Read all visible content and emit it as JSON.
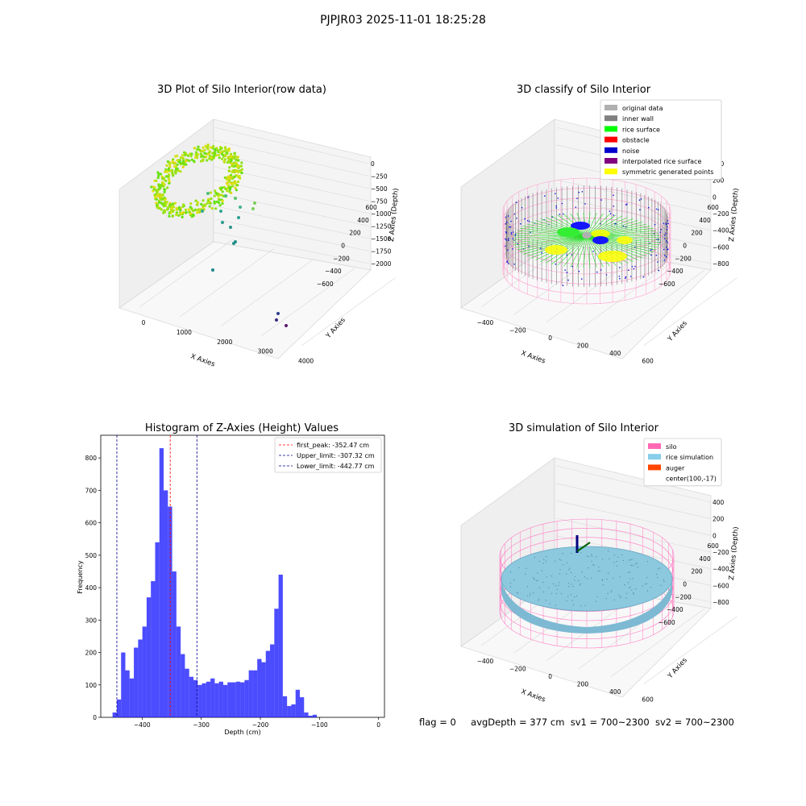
{
  "suptitle": "PJPJR03 2025-11-01 18:25:28",
  "status": {
    "flag": "flag = 0",
    "avg_depth": "avgDepth = 377 cm",
    "sv1": "sv1 = 700~2300",
    "sv2": "sv2 = 700~2300"
  },
  "colors": {
    "hist_bar": "#0000ff",
    "peak_line": "#ff0000",
    "limit_line": "#00008b",
    "silo": "#ff69b4",
    "rice_sim": "#87ceeb",
    "auger": "#ff4500",
    "rice_surface": "#00ff00",
    "noise": "#0000cd",
    "inner_wall": "#808080",
    "original": "#b0b0b0",
    "interpolated": "#800080",
    "symmetric": "#ffff00"
  },
  "panel1": {
    "title": "3D Plot of Silo Interior(row data)",
    "xlabel": "X Axies",
    "ylabel": "Y Axies",
    "zlabel": "Z Axies (Depth)",
    "xticks": [
      "0",
      "1000",
      "2000",
      "3000",
      "4000"
    ],
    "yticks": [
      "600",
      "400",
      "200",
      "0",
      "−200",
      "−400",
      "−600"
    ],
    "zticks": [
      "0",
      "−250",
      "−500",
      "−750",
      "−1000",
      "−1250",
      "−1500",
      "−1750",
      "−2000"
    ]
  },
  "panel2": {
    "title": "3D classify of Silo Interior",
    "xlabel": "X Axies",
    "ylabel": "Y Axies",
    "zlabel": "Z Axies (Depth)",
    "xticks": [
      "−400",
      "−200",
      "0",
      "200",
      "400",
      "600"
    ],
    "yticks": [
      "600",
      "400",
      "200",
      "0",
      "−200",
      "−400",
      "−600"
    ],
    "zticks": [
      "400",
      "200",
      "0",
      "−200",
      "−400",
      "−600",
      "−800"
    ],
    "legend": [
      {
        "label": "original data",
        "color": "#b0b0b0"
      },
      {
        "label": "inner wall",
        "color": "#808080"
      },
      {
        "label": "rice surface",
        "color": "#00ff00"
      },
      {
        "label": "obstacle",
        "color": "#ff0000"
      },
      {
        "label": "noise",
        "color": "#0000cd"
      },
      {
        "label": "interpolated rice surface",
        "color": "#800080"
      },
      {
        "label": "symmetric generated points",
        "color": "#ffff00"
      }
    ]
  },
  "panel4": {
    "title": "3D simulation of Silo Interior",
    "xlabel": "X Axies",
    "ylabel": "Y Axies",
    "zlabel": "Z Axies (Depth)",
    "xticks": [
      "−400",
      "−200",
      "0",
      "200",
      "400",
      "600"
    ],
    "yticks": [
      "600",
      "400",
      "200",
      "0",
      "−200",
      "−400",
      "−600"
    ],
    "zticks": [
      "400",
      "200",
      "0",
      "−200",
      "−400",
      "−600",
      "−800"
    ],
    "legend": [
      {
        "label": "silo",
        "color": "#ff69b4"
      },
      {
        "label": "rice simulation",
        "color": "#87ceeb"
      },
      {
        "label": "auger",
        "color": "#ff4500"
      },
      {
        "label": "center(100,-17)",
        "color": ""
      }
    ]
  },
  "chart_data": [
    {
      "type": "scatter",
      "title": "3D Plot of Silo Interior(row data)",
      "xlabel": "X Axies",
      "ylabel": "Y Axies",
      "zlabel": "Z Axies (Depth)",
      "xlim": [
        -500,
        4500
      ],
      "ylim": [
        -700,
        700
      ],
      "zlim": [
        -2100,
        100
      ],
      "notes": "3D scatter of raw point cloud; dense ring near z≈-300, sparse outliers down to z≈-2000"
    },
    {
      "type": "scatter",
      "title": "3D classify of Silo Interior",
      "xlabel": "X Axies",
      "ylabel": "Y Axies",
      "zlabel": "Z Axies (Depth)",
      "xlim": [
        -500,
        700
      ],
      "ylim": [
        -700,
        700
      ],
      "zlim": [
        -900,
        450
      ],
      "series": [
        {
          "name": "original data"
        },
        {
          "name": "inner wall"
        },
        {
          "name": "rice surface"
        },
        {
          "name": "obstacle"
        },
        {
          "name": "noise"
        },
        {
          "name": "interpolated rice surface"
        },
        {
          "name": "symmetric generated points"
        }
      ]
    },
    {
      "type": "bar",
      "title": "Histogram of Z-Axies (Height) Values",
      "xlabel": "Depth (cm)",
      "ylabel": "Frequency",
      "xlim": [
        -470,
        10
      ],
      "ylim": [
        0,
        870
      ],
      "xticks": [
        -400,
        -300,
        -200,
        -100,
        0
      ],
      "yticks": [
        0,
        100,
        200,
        300,
        400,
        500,
        600,
        700,
        800
      ],
      "bin_start": -450,
      "bin_width": 7.2,
      "values": [
        15,
        55,
        200,
        145,
        120,
        215,
        240,
        280,
        370,
        420,
        540,
        830,
        700,
        650,
        450,
        280,
        195,
        150,
        125,
        115,
        100,
        105,
        110,
        120,
        105,
        110,
        100,
        108,
        108,
        110,
        108,
        115,
        145,
        145,
        180,
        170,
        205,
        225,
        335,
        440,
        65,
        35,
        40,
        85,
        62,
        15,
        5,
        8
      ],
      "lines": [
        {
          "name": "first_peak: -352.47 cm",
          "x": -352.47,
          "color": "#ff0000"
        },
        {
          "name": "Upper_limit: -307.32 cm",
          "x": -307.32,
          "color": "#00008b"
        },
        {
          "name": "Lower_limit: -442.77 cm",
          "x": -442.77,
          "color": "#00008b"
        }
      ]
    },
    {
      "type": "area",
      "title": "3D simulation of Silo Interior",
      "xlabel": "X Axies",
      "ylabel": "Y Axies",
      "zlabel": "Z Axies (Depth)",
      "xlim": [
        -500,
        700
      ],
      "ylim": [
        -700,
        700
      ],
      "zlim": [
        -900,
        450
      ],
      "series": [
        {
          "name": "silo"
        },
        {
          "name": "rice simulation"
        },
        {
          "name": "auger"
        },
        {
          "name": "center(100,-17)"
        }
      ]
    }
  ]
}
